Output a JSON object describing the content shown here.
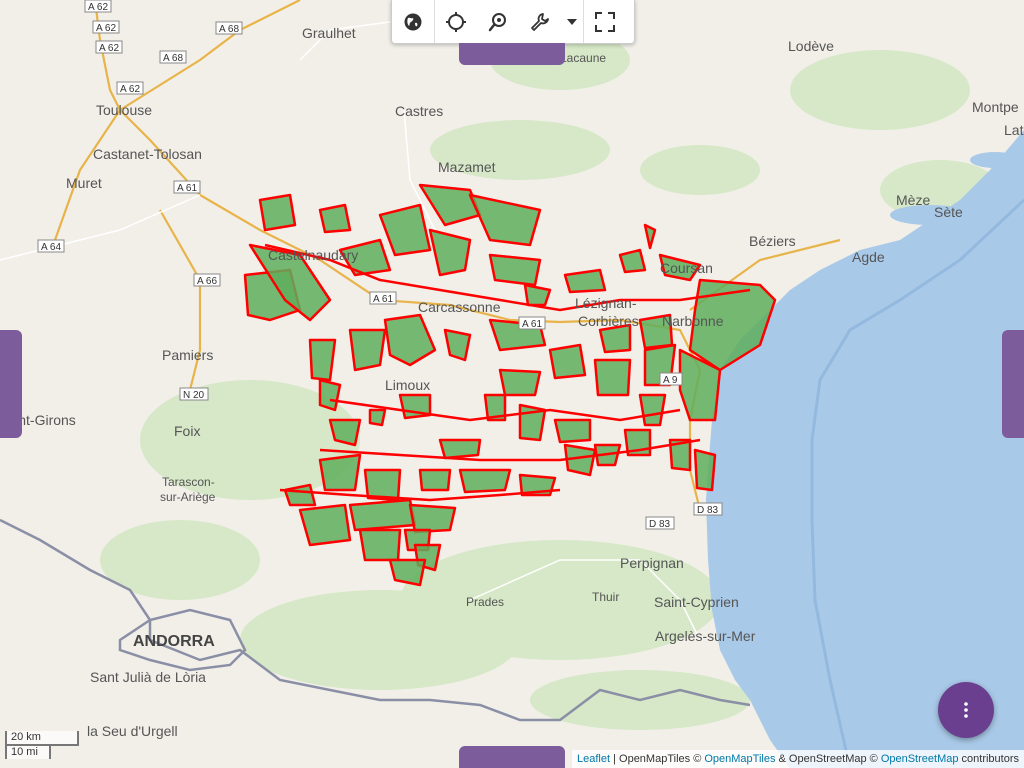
{
  "toolbar": {
    "buttons": [
      "globe-icon",
      "crosshair-icon",
      "map-pin-search-icon",
      "wrench-icon",
      "caret-down-icon",
      "fullscreen-icon"
    ]
  },
  "map": {
    "places": {
      "graulhet": "Graulhet",
      "lodeve": "Lodève",
      "lacaune": "Lacaune",
      "toulouse": "Toulouse",
      "castanet": "Castanet-Tolosan",
      "muret": "Muret",
      "castres": "Castres",
      "mazamet": "Mazamet",
      "montpellier": "Montpe",
      "lat": "Lat",
      "meze": "Mèze",
      "sete": "Sète",
      "beziers": "Béziers",
      "agde": "Agde",
      "castelnaudary": "Castelnaudary",
      "carcassonne": "Carcassonne",
      "lezignan": "Lézignan-",
      "corbieres": "Corbières",
      "narbonne": "Narbonne",
      "coursan": "Coursan",
      "pamiers": "Pamiers",
      "limoux": "Limoux",
      "saint_girons": "Saint-Girons",
      "foix": "Foix",
      "tarascon1": "Tarascon-",
      "tarascon2": "sur-Ariège",
      "perpignan": "Perpignan",
      "prades": "Prades",
      "thuir": "Thuir",
      "saint_cyprien": "Saint-Cyprien",
      "argeles": "Argelès-sur-Mer",
      "andorra": "ANDORRA",
      "sant_julia": "Sant Julià de Lòria",
      "seu": "la Seu d'Urgell"
    },
    "roads": {
      "a62a": "A 62",
      "a62b": "A 62",
      "a62c": "A 62",
      "a62d": "A 62",
      "a68": "A 68",
      "a68b": "A 68",
      "a61": "A 61",
      "a64": "A 64",
      "a66": "A 66",
      "a61b": "A 61",
      "a61c": "A 61",
      "n20": "N 20",
      "a9": "A 9",
      "d83": "D 83",
      "d83b": "D 83"
    },
    "colors": {
      "water": "#a9c9e8",
      "land": "#f2efe9",
      "forest": "#cfe4c0",
      "region_fill": "#5fae5c",
      "region_stroke": "#ff0000",
      "border": "#8a8fa6"
    }
  },
  "scale": {
    "km": "20 km",
    "mi": "10 mi"
  },
  "attribution": {
    "leaflet": "Leaflet",
    "sep1": " | OpenMapTiles © ",
    "omt": "OpenMapTiles",
    "sep2": " & OpenStreetMap © ",
    "osm": "OpenStreetMap",
    "tail": " contributors"
  },
  "fab": {
    "icon": "more-vertical-icon"
  }
}
